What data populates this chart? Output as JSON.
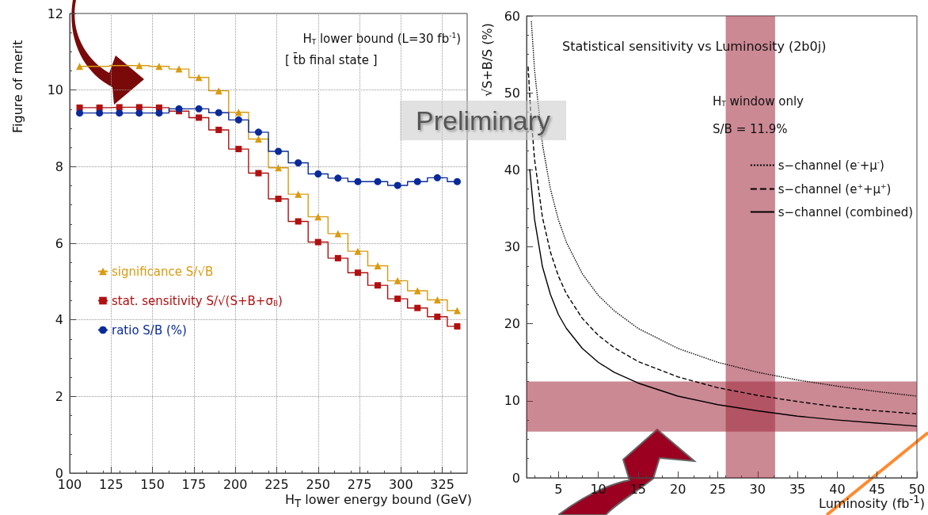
{
  "chart_data": [
    {
      "type": "step",
      "xlabel": "H$_{T}$ lower energy bound (GeV)",
      "ylabel": "Figure of merit",
      "annotations": [
        "H$_{T}$ lower bound (L=30 fb$^{-1}$)",
        "[ t̄b final state ]"
      ],
      "x": [
        106,
        118,
        130,
        142,
        154,
        166,
        178,
        190,
        202,
        214,
        226,
        238,
        250,
        262,
        274,
        286,
        298,
        310,
        322,
        334
      ],
      "xlim": [
        100,
        340
      ],
      "xticks": [
        100,
        125,
        150,
        175,
        200,
        225,
        250,
        275,
        300,
        325
      ],
      "ylim": [
        0,
        12
      ],
      "yticks": [
        0,
        2,
        4,
        6,
        8,
        10,
        12
      ],
      "grid": true,
      "legend": "left",
      "series": [
        {
          "name": "significance S/√B",
          "color": "#d89a10",
          "marker": "triangle",
          "values": [
            10.62,
            null,
            null,
            10.64,
            10.62,
            10.55,
            10.33,
            9.98,
            9.42,
            8.72,
            7.97,
            7.28,
            6.69,
            6.25,
            5.79,
            5.41,
            5.02,
            4.76,
            4.52,
            4.24
          ]
        },
        {
          "name": "stat. sensitivity S/√(S+B+σ$_{B}$)",
          "color": "#b01010",
          "marker": "square",
          "values": [
            9.54,
            9.54,
            9.55,
            9.55,
            9.54,
            9.45,
            9.28,
            8.96,
            8.46,
            7.83,
            7.16,
            6.57,
            6.03,
            5.61,
            5.23,
            4.9,
            4.55,
            4.31,
            4.08,
            3.83
          ]
        },
        {
          "name": "ratio S/B (%)",
          "color": "#0a2a9a",
          "marker": "circle",
          "values": [
            9.4,
            9.4,
            9.4,
            9.4,
            9.4,
            9.51,
            9.51,
            9.41,
            9.22,
            8.9,
            8.4,
            8.1,
            7.81,
            7.7,
            7.61,
            7.61,
            7.51,
            7.61,
            7.71,
            7.61
          ]
        }
      ]
    },
    {
      "type": "line",
      "title": "Statistical sensitivity vs Luminosity (2b0j)",
      "xlabel": "Luminosity (fb$^{-1}$)",
      "ylabel": "√S+B/S (%)",
      "annotations": [
        "H$_{T}$ window only",
        "S/B = 11.9%",
        "Preliminary"
      ],
      "xlim": [
        1,
        50
      ],
      "xticks": [
        5,
        10,
        15,
        20,
        25,
        30,
        35,
        40,
        45,
        50
      ],
      "ylim": [
        0,
        60
      ],
      "yticks": [
        0,
        10,
        20,
        30,
        40,
        50,
        60
      ],
      "grid": false,
      "legend": "top right",
      "marker": "none",
      "bands": [
        {
          "axis": "y",
          "from": 6,
          "to": 12.5,
          "color": "#a0283c"
        },
        {
          "axis": "x",
          "from": 26,
          "to": 32.2,
          "color": "#a0283c"
        }
      ],
      "series": [
        {
          "name": "s−channel (e$^{-}$+μ$^{-}$)",
          "color": "#000000",
          "line_style": "dotted",
          "x": [
            1.6,
            2,
            3,
            4,
            5,
            6,
            8,
            10,
            12,
            15,
            20,
            25,
            30,
            35,
            40,
            45,
            50
          ],
          "values": [
            59.3,
            53,
            43.3,
            37.5,
            33.5,
            30.6,
            26.5,
            23.7,
            21.7,
            19.4,
            16.8,
            15,
            13.7,
            12.7,
            11.9,
            11.2,
            10.6
          ]
        },
        {
          "name": "s−channel (e$^{+}$+μ$^{+}$)",
          "color": "#000000",
          "line_style": "dashed",
          "x": [
            1.2,
            1.5,
            2,
            3,
            4,
            5,
            6,
            8,
            10,
            12,
            15,
            20,
            25,
            30,
            35,
            40,
            45,
            50
          ],
          "values": [
            53.4,
            47.8,
            41.4,
            33.8,
            29.3,
            26.2,
            23.9,
            20.7,
            18.5,
            16.9,
            15.1,
            13.1,
            11.7,
            10.7,
            9.9,
            9.2,
            8.7,
            8.3
          ]
        },
        {
          "name": "s−channel (combined)",
          "color": "#000000",
          "line_style": "solid",
          "x": [
            1.4,
            2,
            3,
            4,
            5,
            6,
            8,
            10,
            12,
            15,
            20,
            25,
            30,
            35,
            40,
            45,
            50
          ],
          "values": [
            40.1,
            33.6,
            27.4,
            23.8,
            21.2,
            19.4,
            16.8,
            15,
            13.7,
            12.3,
            10.6,
            9.5,
            8.7,
            8,
            7.5,
            7.1,
            6.7
          ]
        }
      ]
    }
  ]
}
